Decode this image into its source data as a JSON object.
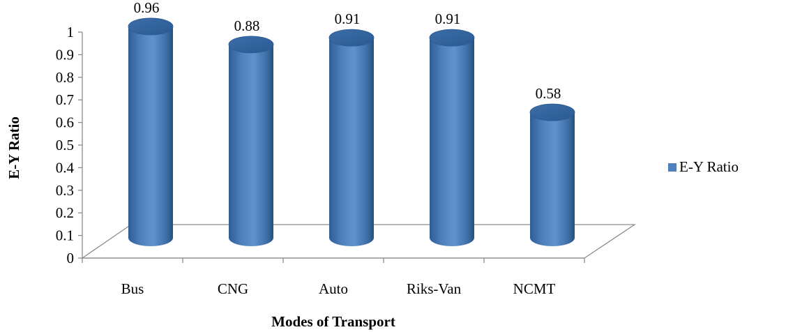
{
  "chart_data": {
    "type": "bar",
    "title": "",
    "xlabel": "Modes of Transport",
    "ylabel": "E-Y Ratio",
    "categories": [
      "Bus",
      "CNG",
      "Auto",
      "Riks-Van",
      "NCMT"
    ],
    "series": [
      {
        "name": "E-Y Ratio",
        "values": [
          0.96,
          0.88,
          0.91,
          0.91,
          0.58
        ],
        "color": "#4f81bd"
      }
    ],
    "data_labels": [
      "0.96",
      "0.88",
      "0.91",
      "0.91",
      "0.58"
    ],
    "ylim": [
      0,
      1
    ],
    "yticks": [
      "0",
      "0.1",
      "0.2",
      "0.3",
      "0.4",
      "0.5",
      "0.6",
      "0.7",
      "0.8",
      "0.9",
      "1"
    ],
    "legend_position": "right",
    "grid": false,
    "style": "3d-cylinder"
  }
}
